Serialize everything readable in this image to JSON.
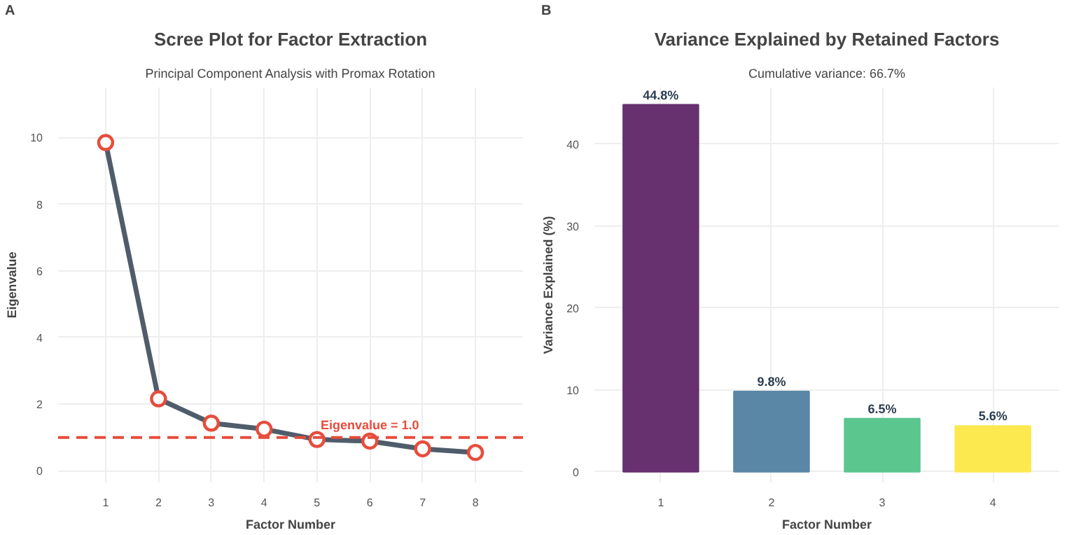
{
  "chart_data": [
    {
      "type": "line",
      "title": "Scree Plot for Factor Extraction",
      "subtitle": "Principal Component Analysis with Promax Rotation",
      "xlabel": "Factor Number",
      "ylabel": "Eigenvalue",
      "annotations": [
        "A"
      ],
      "x": [
        1,
        2,
        3,
        4,
        5,
        6,
        7,
        8
      ],
      "series": [
        {
          "color": "#4f5d6b",
          "values": [
            9.85,
            2.16,
            1.43,
            1.25,
            0.94,
            0.89,
            0.66,
            0.55
          ]
        }
      ],
      "marker": "circle",
      "line_style": "solid",
      "xlim": [
        0.1,
        8.9
      ],
      "ylim": [
        -0.35,
        11.5
      ],
      "xticks": [
        1,
        2,
        3,
        4,
        5,
        6,
        7,
        8
      ],
      "yticks": [
        0,
        2,
        4,
        6,
        8,
        10
      ],
      "ref_lines": [
        {
          "axis": "y",
          "value": 1.0,
          "label": "Eigenvalue = 1.0",
          "color": "#e74c3c",
          "line_style": "dashed"
        }
      ],
      "grid": true
    },
    {
      "type": "bar",
      "title": "Variance Explained by Retained Factors",
      "subtitle": "Cumulative variance: 66.7%",
      "xlabel": "Factor Number",
      "ylabel": "Variance Explained (%)",
      "annotations": [
        "B"
      ],
      "categories": [
        "1",
        "2",
        "3",
        "4"
      ],
      "values": [
        44.8,
        9.8,
        6.5,
        5.6
      ],
      "colors": [
        "#67306f",
        "#5a87a6",
        "#5cc68f",
        "#fce94f"
      ],
      "value_labels": [
        "44.8%",
        "9.8%",
        "6.5%",
        "5.6%"
      ],
      "ylim": [
        -1.3,
        46.9
      ],
      "yticks": [
        0,
        10,
        20,
        30,
        40
      ],
      "grid": true
    }
  ]
}
